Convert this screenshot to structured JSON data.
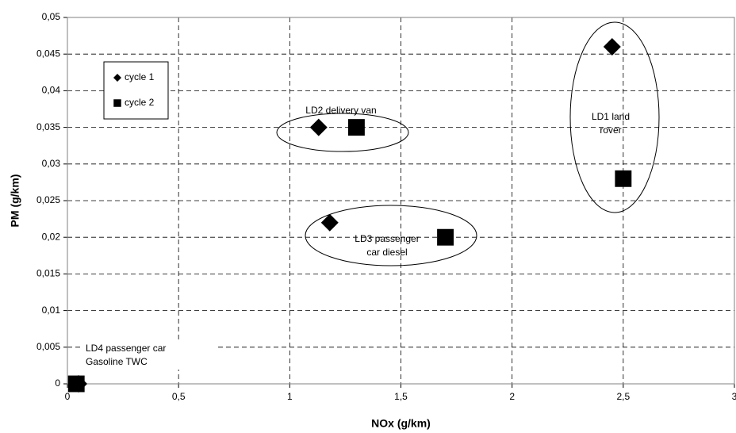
{
  "chart_data": {
    "type": "scatter",
    "xlabel": "NOx (g/km)",
    "ylabel": "PM (g/km)",
    "xlim": [
      0,
      3
    ],
    "ylim": [
      0,
      0.05
    ],
    "xticks": [
      0,
      {
        "value": 0.5,
        "label": "0,5"
      },
      1,
      {
        "value": 1.5,
        "label": "1,5"
      },
      2,
      {
        "value": 2.5,
        "label": "2,5"
      },
      3
    ],
    "yticks": [
      0,
      {
        "value": 0.005,
        "label": "0,005"
      },
      {
        "value": 0.01,
        "label": "0,01"
      },
      {
        "value": 0.015,
        "label": "0,015"
      },
      {
        "value": 0.02,
        "label": "0,02"
      },
      {
        "value": 0.025,
        "label": "0,025"
      },
      {
        "value": 0.03,
        "label": "0,03"
      },
      {
        "value": 0.035,
        "label": "0,035"
      },
      {
        "value": 0.04,
        "label": "0,04"
      },
      {
        "value": 0.045,
        "label": "0,045"
      },
      {
        "value": 0.05,
        "label": "0,05"
      }
    ],
    "grid": true,
    "series": [
      {
        "name": "cycle 1",
        "marker": "diamond",
        "color": "#000000",
        "x": [
          0.05,
          1.13,
          1.18,
          2.45
        ],
        "values": [
          0,
          0.035,
          0.022,
          0.046
        ]
      },
      {
        "name": "cycle 2",
        "marker": "square",
        "color": "#000000",
        "x": [
          0.04,
          1.3,
          1.7,
          2.5
        ],
        "values": [
          0,
          0.035,
          0.02,
          0.028
        ]
      }
    ],
    "annotations": [
      {
        "lines": [
          "LD2 delivery van"
        ]
      },
      {
        "lines": [
          "LD3 passenger",
          "car diesel"
        ]
      },
      {
        "lines": [
          "LD1 land",
          "rover"
        ]
      },
      {
        "lines": [
          "LD4 passenger car",
          "Gasoline TWC"
        ]
      }
    ]
  }
}
